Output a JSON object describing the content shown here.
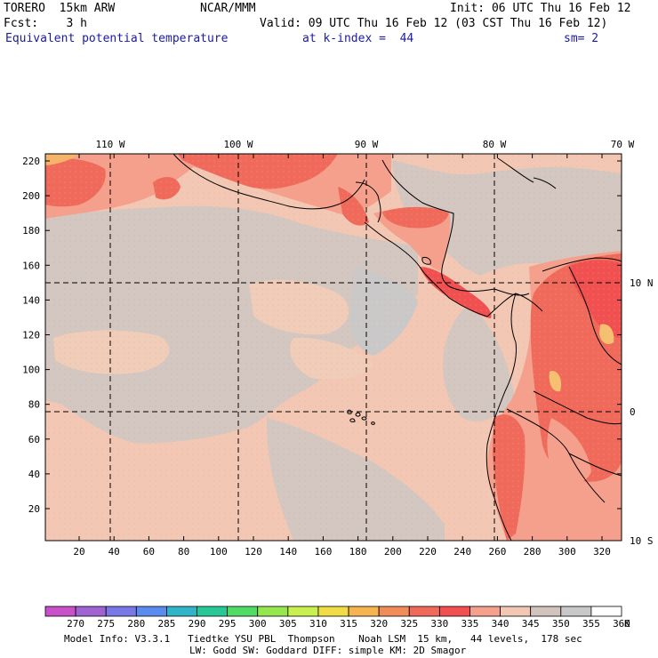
{
  "header": {
    "model": "TORERO  15km ARW",
    "org": "NCAR/MMM",
    "init": "Init: 06 UTC Thu 16 Feb 12",
    "fcst": "Fcst:    3 h",
    "valid": "Valid: 09 UTC Thu 16 Feb 12 (03 CST Thu 16 Feb 12)",
    "field": "Equivalent potential temperature",
    "level": "at k-index =  44",
    "smooth": "sm= 2"
  },
  "map": {
    "lon_labels": [
      "110 W",
      "100 W",
      "90 W",
      "80 W",
      "70 W"
    ],
    "lat_labels": [
      "10 N",
      "0",
      "10 S"
    ],
    "y_ticks": [
      "220",
      "200",
      "180",
      "160",
      "140",
      "120",
      "100",
      "80",
      "60",
      "40",
      "20"
    ],
    "x_ticks": [
      "20",
      "40",
      "60",
      "80",
      "100",
      "120",
      "140",
      "160",
      "180",
      "200",
      "220",
      "240",
      "260",
      "280",
      "300",
      "320"
    ]
  },
  "colorbar": {
    "values": [
      "270",
      "275",
      "280",
      "285",
      "290",
      "295",
      "300",
      "305",
      "310",
      "315",
      "320",
      "325",
      "330",
      "335",
      "340",
      "345",
      "350",
      "355",
      "360"
    ],
    "unit": "K",
    "colors": [
      "#c850c8",
      "#a064d2",
      "#7878e6",
      "#5a8cf0",
      "#32b4c8",
      "#28c896",
      "#50dc64",
      "#96e650",
      "#c8f050",
      "#f0dc46",
      "#f5b450",
      "#f08c5a",
      "#ef6a5a",
      "#f25050",
      "#f5a08c",
      "#f2c8b4",
      "#d2c3bc",
      "#c8c8c8",
      "#ffffff"
    ]
  },
  "footer": {
    "line1": "Model Info: V3.3.1   Tiedtke YSU PBL  Thompson    Noah LSM  15 km,   44 levels,  178 sec",
    "line2": "LW: Godd SW: Goddard DIFF: simple KM: 2D Smagor"
  }
}
